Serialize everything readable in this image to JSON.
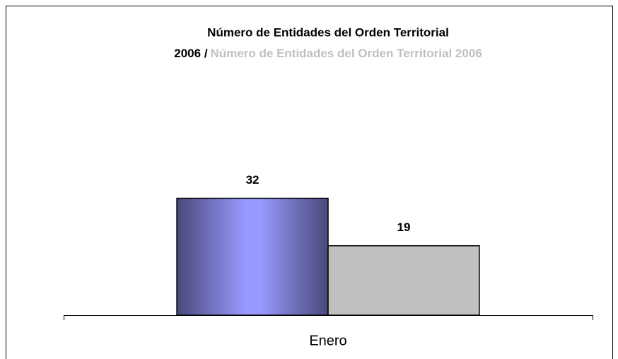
{
  "chart_data": {
    "type": "bar",
    "title": "Número de Entidades del Orden Territorial",
    "legend_separator": "/",
    "categories": [
      "Enero"
    ],
    "series": [
      {
        "name": "2006",
        "color": "#9999ff",
        "values": [
          32
        ]
      },
      {
        "name": "Número de Entidades del Orden Territorial 2006",
        "color": "#c0c0c0",
        "values": [
          19
        ]
      }
    ],
    "ylim": [
      0,
      35
    ]
  }
}
